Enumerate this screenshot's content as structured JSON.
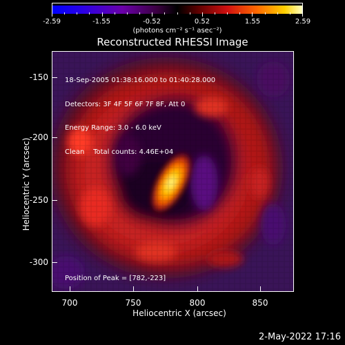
{
  "colorbar": {
    "labels": [
      "-2.59",
      "-1.55",
      "-0.52",
      "0.52",
      "1.55",
      "2.59"
    ],
    "units": "(photons cm⁻² s⁻¹ asec⁻²)",
    "range": [
      -2.59,
      2.59
    ]
  },
  "title": "Reconstructed RHESSI Image",
  "annotations": {
    "line1": "18-Sep-2005 01:38:16.000 to 01:40:28.000",
    "line2": "Detectors: 3F 4F 5F 6F 7F 8F, Att 0",
    "line3": "Energy Range: 3.0 - 6.0 keV",
    "line4": "Clean    Total counts: 4.46E+04",
    "peak": "Position of Peak = [782,-223]"
  },
  "axes": {
    "xlabel": "Heliocentric X (arcsec)",
    "ylabel": "Heliocentric Y (arcsec)",
    "xticks": [
      "700",
      "750",
      "800",
      "850"
    ],
    "yticks": [
      "-150",
      "-200",
      "-250",
      "-300"
    ],
    "xlim": [
      685,
      877
    ],
    "ylim": [
      -325,
      -134
    ]
  },
  "timestamp": "2-May-2022 17:16",
  "colors": {
    "background": "#000000",
    "foreground": "#ffffff"
  }
}
